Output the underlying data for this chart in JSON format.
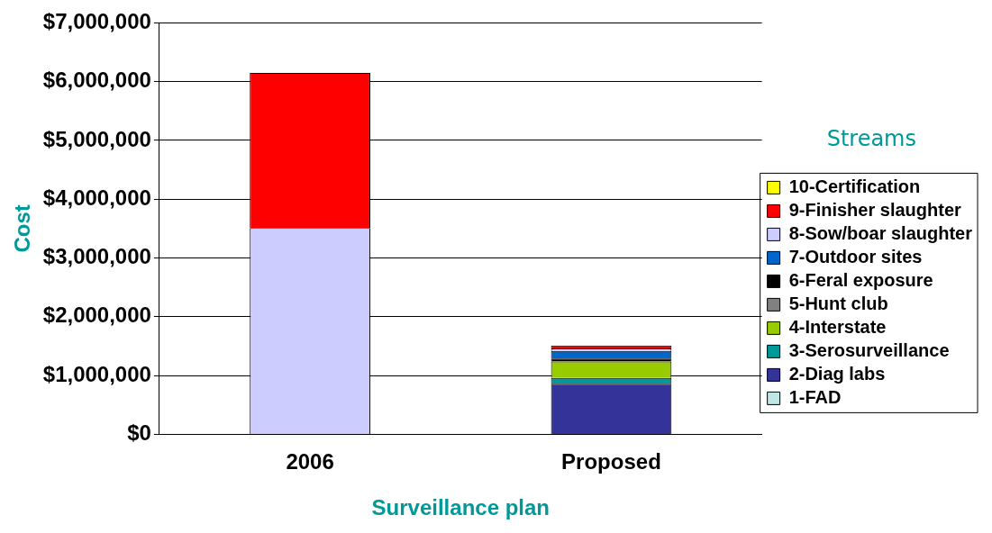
{
  "chart_data": {
    "type": "bar",
    "stacked": true,
    "xlabel": "Surveillance plan",
    "ylabel": "Cost",
    "legend_title": "Streams",
    "legend": "right",
    "grid": "y",
    "categories": [
      "2006",
      "Proposed"
    ],
    "series": [
      {
        "name": "1-FAD",
        "color": "#c0e6e6",
        "values": [
          0,
          null
        ]
      },
      {
        "name": "2-Diag labs",
        "color": "#333399",
        "values": [
          0,
          860000
        ]
      },
      {
        "name": "3-Serosurveillance",
        "color": "#009999",
        "values": [
          0,
          100000
        ]
      },
      {
        "name": "4-Interstate",
        "color": "#99cc00",
        "values": [
          0,
          280000
        ]
      },
      {
        "name": "5-Hunt club",
        "color": "#808080",
        "values": [
          0,
          null
        ]
      },
      {
        "name": "6-Feral exposure",
        "color": "#000000",
        "values": [
          0,
          50000
        ]
      },
      {
        "name": "7-Outdoor sites",
        "color": "#0066cc",
        "values": [
          0,
          130000
        ]
      },
      {
        "name": "8-Sow/boar slaughter",
        "color": "#ccccff",
        "values": [
          3510000,
          40000
        ]
      },
      {
        "name": "9-Finisher slaughter",
        "color": "#ff0000",
        "values": [
          2640000,
          50000
        ]
      },
      {
        "name": "10-Certification",
        "color": "#ffff00",
        "values": [
          0,
          0
        ]
      }
    ],
    "ylim": [
      0,
      7000000
    ],
    "yticks": [
      {
        "value": 0,
        "label": "$0"
      },
      {
        "value": 1000000,
        "label": "$1,000,000"
      },
      {
        "value": 2000000,
        "label": "$2,000,000"
      },
      {
        "value": 3000000,
        "label": "$3,000,000"
      },
      {
        "value": 4000000,
        "label": "$4,000,000"
      },
      {
        "value": 5000000,
        "label": "$5,000,000"
      },
      {
        "value": 6000000,
        "label": "$6,000,000"
      },
      {
        "value": 7000000,
        "label": "$7,000,000"
      }
    ]
  }
}
